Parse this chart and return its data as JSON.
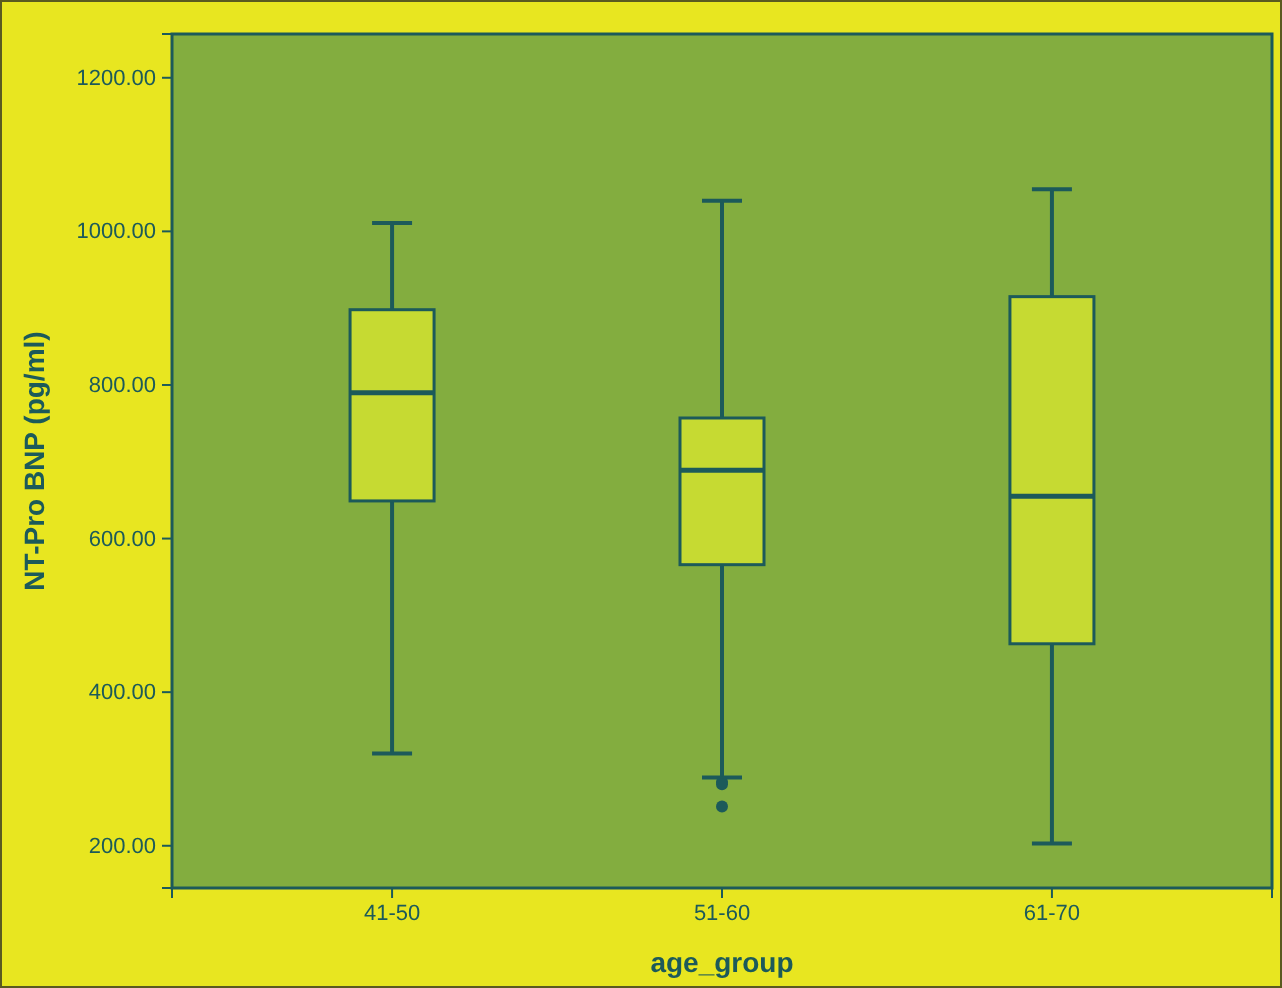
{
  "chart_data": {
    "type": "box",
    "xlabel": "age_group",
    "ylabel": "NT-Pro BNP (pg/ml)",
    "categories": [
      "41-50",
      "51-60",
      "61-70"
    ],
    "boxes": [
      {
        "low": 320,
        "q1": 649,
        "median": 790,
        "q3": 898,
        "high": 1011
      },
      {
        "low": 289,
        "q1": 566,
        "median": 689,
        "q3": 757,
        "high": 1040,
        "outliers": [
          283,
          280,
          251
        ]
      },
      {
        "low": 203,
        "q1": 463,
        "median": 655,
        "q3": 915,
        "high": 1055
      }
    ],
    "color": "#c6da32",
    "ylim": [
      145,
      1257
    ],
    "yticks": [
      {
        "value": 200,
        "label": "200.00"
      },
      {
        "value": 400,
        "label": "400.00"
      },
      {
        "value": 600,
        "label": "600.00"
      },
      {
        "value": 800,
        "label": "800.00"
      },
      {
        "value": 1000,
        "label": "1000.00"
      },
      {
        "value": 1200,
        "label": "1200.00"
      }
    ],
    "grid": false,
    "legend": false
  }
}
